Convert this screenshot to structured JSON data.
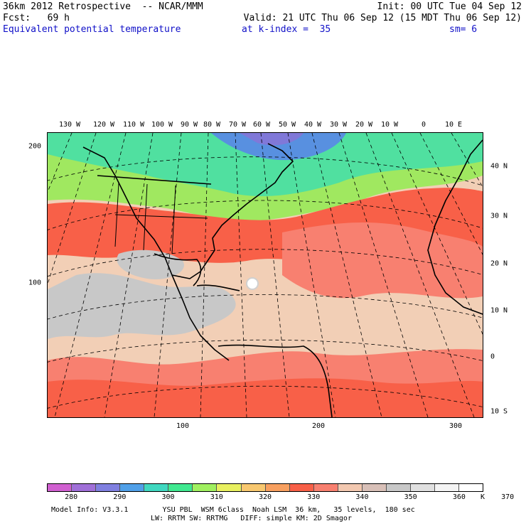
{
  "header": {
    "line1_left": "36km 2012 Retrospective  -- NCAR/MMM",
    "line1_right": "Init: 00 UTC Tue 04 Sep 12",
    "line2_left": "Fcst:   69 h",
    "line2_right": "Valid: 21 UTC Thu 06 Sep 12 (15 MDT Thu 06 Sep 12)",
    "field": "Equivalent potential temperature",
    "kindex": "at k-index =  35",
    "smooth": "sm= 6"
  },
  "longitude_labels": [
    "130 W",
    "120 W",
    "110 W",
    "100 W",
    "90 W",
    "80 W",
    "70 W",
    "60 W",
    "50 W",
    "40 W",
    "30 W",
    "20 W",
    "10 W",
    "0",
    "10 E"
  ],
  "latitude_labels": [
    "40 N",
    "30 N",
    "20 N",
    "10 N",
    "0",
    "10 S"
  ],
  "left_axis_labels": [
    "200",
    "100"
  ],
  "bottom_axis_labels": [
    "100",
    "200",
    "300"
  ],
  "legend": {
    "labels": [
      "280",
      "290",
      "300",
      "310",
      "320",
      "330",
      "340",
      "350",
      "360",
      "370"
    ],
    "unit": "K",
    "colors": [
      "#d060d0",
      "#a070d8",
      "#8080e0",
      "#50a0e8",
      "#40d8c0",
      "#40e890",
      "#a0f060",
      "#e8f060",
      "#f8c870",
      "#f8a060",
      "#f86048",
      "#f88070",
      "#f2c8b0",
      "#d8c0b8",
      "#c8c8c8",
      "#e0e0e0",
      "#f4f4f4",
      "#ffffff"
    ]
  },
  "footer": {
    "line1": "Model Info: V3.3.1        YSU PBL  WSM 6class  Noah LSM  36 km,   35 levels,  180 sec",
    "line2": "LW: RRTM SW: RRTMG   DIFF: simple KM: 2D Smagor"
  }
}
